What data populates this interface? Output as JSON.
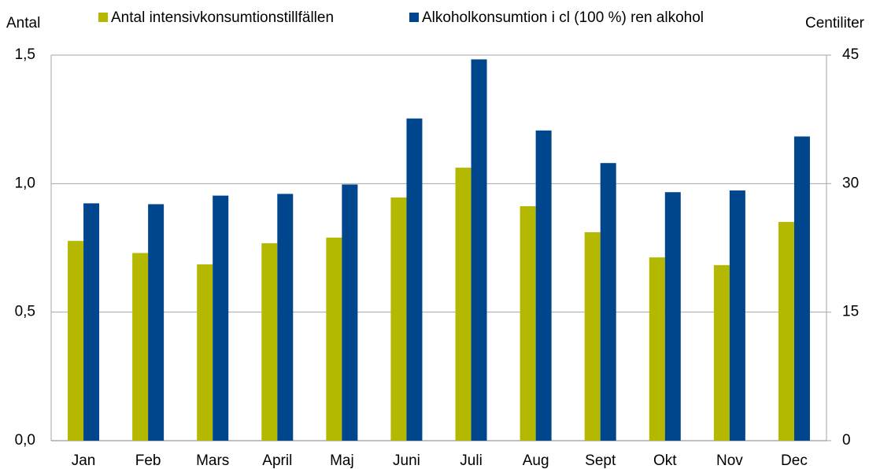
{
  "chart_data": {
    "type": "bar",
    "y_axis_label": "Antal",
    "y2_axis_label": "Centiliter",
    "categories": [
      "Jan",
      "Feb",
      "Mars",
      "April",
      "Maj",
      "Juni",
      "Juli",
      "Aug",
      "Sept",
      "Okt",
      "Nov",
      "Dec"
    ],
    "series": [
      {
        "name": "Antal intensivkonsumtionstillfällen",
        "color": "#b5b800",
        "values": [
          0.777,
          0.73,
          0.686,
          0.768,
          0.79,
          0.946,
          1.062,
          0.912,
          0.811,
          0.713,
          0.683,
          0.851
        ]
      },
      {
        "name": "Alkoholkonsumtion i cl (100 %) ren alkohol",
        "color": "#00468c",
        "axis": "y2",
        "values": [
          27.7,
          27.6,
          28.6,
          28.8,
          29.9,
          37.6,
          44.5,
          36.2,
          32.4,
          29.0,
          29.2,
          35.5
        ]
      }
    ],
    "ylim": [
      0,
      1.5
    ],
    "yticks": [
      {
        "value": 0,
        "label": "0,0"
      },
      {
        "value": 0.5,
        "label": "0,5"
      },
      {
        "value": 1,
        "label": "1,0"
      },
      {
        "value": 1.5,
        "label": "1,5"
      }
    ],
    "y2lim": [
      0,
      45
    ],
    "y2ticks": [
      0,
      15,
      30,
      45
    ],
    "grid": true,
    "legend": "top"
  }
}
